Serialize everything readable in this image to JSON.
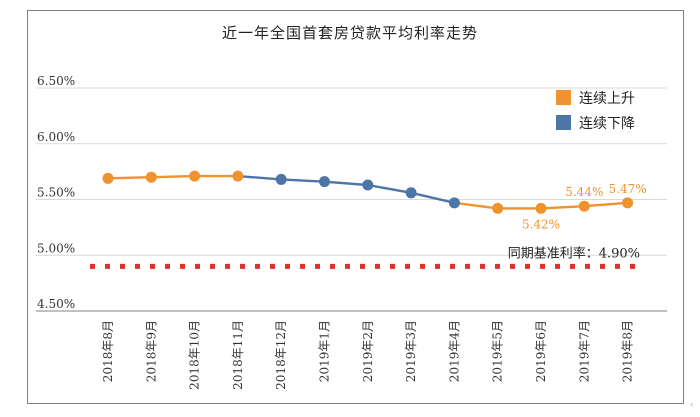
{
  "chart_data": {
    "type": "line",
    "title": "近一年全国首套房贷款平均利率走势",
    "categories": [
      "2018年8月",
      "2018年9月",
      "2018年10月",
      "2018年11月",
      "2018年12月",
      "2019年1月",
      "2019年2月",
      "2019年3月",
      "2019年4月",
      "2019年5月",
      "2019年6月",
      "2019年7月",
      "2019年8月"
    ],
    "values": [
      5.69,
      5.7,
      5.71,
      5.71,
      5.68,
      5.66,
      5.63,
      5.56,
      5.47,
      5.42,
      5.42,
      5.44,
      5.47
    ],
    "trend": [
      "up",
      "up",
      "up",
      "up",
      "down",
      "down",
      "down",
      "down",
      "down",
      "up",
      "up",
      "up",
      "up"
    ],
    "ylim": [
      4.45,
      6.55
    ],
    "yticks": [
      "6.50%",
      "6.00%",
      "5.50%",
      "5.00%",
      "4.50%"
    ],
    "ytick_values": [
      6.5,
      6.0,
      5.5,
      5.0,
      4.5
    ],
    "data_labels": [
      {
        "index": 10,
        "text": "5.42%",
        "pos": "below"
      },
      {
        "index": 11,
        "text": "5.44%",
        "pos": "above"
      },
      {
        "index": 12,
        "text": "5.47%",
        "pos": "above"
      }
    ],
    "baseline": {
      "value": 4.9,
      "label": "同期基准利率：4.90%"
    },
    "legend": [
      {
        "label": "连续上升",
        "color": "#F0922E"
      },
      {
        "label": "连续下降",
        "color": "#4D76A8"
      }
    ],
    "legend_position": "top-right",
    "grid": "horizontal",
    "colors": {
      "up": "#F0922E",
      "down": "#4D76A8",
      "baseline": "#E0302E",
      "grid": "#d9d9d9",
      "label": "#F0922E"
    }
  }
}
